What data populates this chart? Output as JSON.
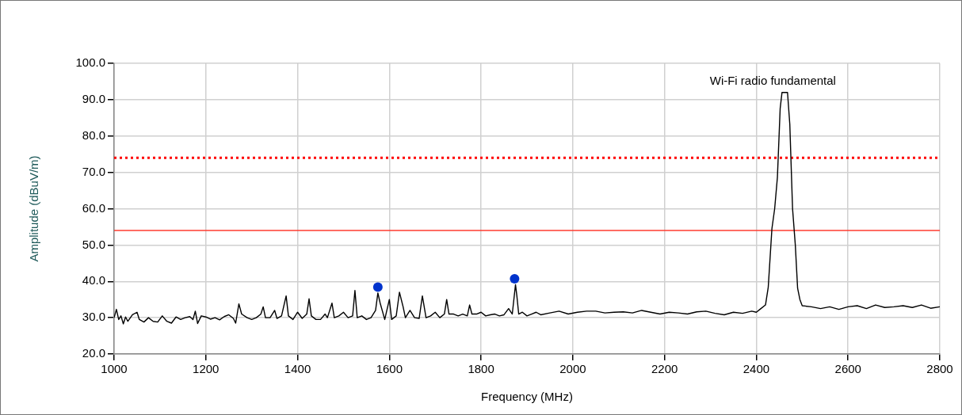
{
  "chart_data": {
    "type": "line",
    "xlabel": "Frequency (MHz)",
    "ylabel": "Amplitude (dBuV/m)",
    "xlim": [
      1000,
      2800
    ],
    "xticks": [
      1000,
      1200,
      1400,
      1600,
      1800,
      2000,
      2200,
      2400,
      2600,
      2800
    ],
    "ylim": [
      20,
      100
    ],
    "yticks": [
      {
        "value": 20,
        "label": "20.0"
      },
      {
        "value": 30,
        "label": "30.0"
      },
      {
        "value": 40,
        "label": "40.0"
      },
      {
        "value": 50,
        "label": "50.0"
      },
      {
        "value": 60,
        "label": "60.0"
      },
      {
        "value": 70,
        "label": "70.0"
      },
      {
        "value": 80,
        "label": "80.0"
      },
      {
        "value": 90,
        "label": "90.0"
      },
      {
        "value": 100,
        "label": "100.0"
      }
    ],
    "grid": true,
    "legend": false,
    "annotations": [
      {
        "text": "Wi-Fi radio fundamental",
        "x": 2462,
        "y": 92
      }
    ],
    "ref_lines": [
      {
        "axis": "y",
        "value": 74,
        "color": "#ff0000",
        "line_style": "dotted"
      },
      {
        "axis": "y",
        "value": 54,
        "color": "#ff3b2f",
        "line_style": "solid"
      }
    ],
    "series": [
      {
        "type": "line",
        "color": "#000000",
        "marker": "none",
        "x": [
          1000,
          1005,
          1010,
          1015,
          1020,
          1025,
          1030,
          1040,
          1050,
          1055,
          1065,
          1075,
          1085,
          1095,
          1105,
          1115,
          1125,
          1135,
          1145,
          1155,
          1165,
          1172,
          1177,
          1182,
          1190,
          1200,
          1210,
          1220,
          1230,
          1240,
          1250,
          1260,
          1265,
          1272,
          1278,
          1290,
          1300,
          1310,
          1320,
          1325,
          1330,
          1340,
          1350,
          1355,
          1365,
          1375,
          1380,
          1390,
          1400,
          1410,
          1420,
          1425,
          1430,
          1440,
          1450,
          1460,
          1465,
          1475,
          1480,
          1490,
          1500,
          1510,
          1520,
          1525,
          1530,
          1540,
          1550,
          1560,
          1570,
          1575,
          1580,
          1590,
          1600,
          1605,
          1615,
          1622,
          1630,
          1635,
          1645,
          1655,
          1665,
          1672,
          1680,
          1690,
          1700,
          1710,
          1720,
          1725,
          1730,
          1740,
          1750,
          1760,
          1770,
          1775,
          1780,
          1790,
          1800,
          1810,
          1820,
          1830,
          1840,
          1850,
          1860,
          1868,
          1875,
          1878,
          1882,
          1890,
          1900,
          1910,
          1920,
          1930,
          1950,
          1970,
          1990,
          2010,
          2030,
          2050,
          2070,
          2090,
          2110,
          2130,
          2150,
          2170,
          2190,
          2210,
          2230,
          2250,
          2270,
          2290,
          2310,
          2330,
          2350,
          2370,
          2390,
          2400,
          2410,
          2420,
          2426,
          2434,
          2440,
          2446,
          2452,
          2456,
          2468,
          2473,
          2479,
          2485,
          2490,
          2495,
          2500,
          2520,
          2540,
          2560,
          2580,
          2600,
          2620,
          2640,
          2660,
          2680,
          2700,
          2720,
          2740,
          2760,
          2780,
          2800
        ],
        "values": [
          30,
          32.3,
          29.5,
          30.5,
          28.3,
          30.2,
          29,
          30.8,
          31.5,
          29.5,
          28.8,
          30,
          29,
          28.8,
          30.5,
          29,
          28.5,
          30.2,
          29.5,
          30,
          30.3,
          29.5,
          31.8,
          28.4,
          30.5,
          30.2,
          29.6,
          30,
          29.4,
          30.3,
          30.8,
          29.8,
          28.5,
          33.8,
          31,
          30,
          29.5,
          30,
          31,
          33,
          30,
          30,
          32,
          29.8,
          30.5,
          36,
          30.5,
          29.5,
          31.5,
          29.8,
          31,
          35.2,
          30.5,
          29.5,
          29.5,
          31,
          30,
          34,
          30,
          30.5,
          31.5,
          30,
          30.5,
          37.5,
          30,
          30.5,
          29.5,
          30,
          32,
          36.8,
          34,
          29.5,
          35,
          29.5,
          30.5,
          37,
          33,
          30,
          32,
          30,
          29.8,
          36,
          30,
          30.5,
          31.5,
          30,
          31,
          35,
          31,
          31,
          30.5,
          31,
          30.5,
          33.5,
          31,
          31,
          31.5,
          30.5,
          30.8,
          31,
          30.5,
          30.8,
          32.5,
          31,
          39.1,
          36,
          31,
          31.5,
          30.5,
          31,
          31.5,
          30.8,
          31.3,
          31.8,
          31,
          31.5,
          31.8,
          31.8,
          31.3,
          31.5,
          31.6,
          31.3,
          32,
          31.5,
          31,
          31.5,
          31.3,
          31,
          31.6,
          31.8,
          31.2,
          30.8,
          31.5,
          31.2,
          31.8,
          31.5,
          32.5,
          33.5,
          38.4,
          54.5,
          60,
          68.7,
          87.6,
          92,
          92,
          83.2,
          60,
          50,
          38.1,
          35,
          33.3,
          33,
          32.5,
          33,
          32.3,
          33,
          33.3,
          32.5,
          33.5,
          32.8,
          33,
          33.3,
          32.8,
          33.5,
          32.6,
          33
        ]
      },
      {
        "type": "scatter",
        "color": "#0033cc",
        "marker": "circle",
        "x": [
          1575,
          1873
        ],
        "values": [
          38.4,
          40.7
        ]
      }
    ]
  }
}
